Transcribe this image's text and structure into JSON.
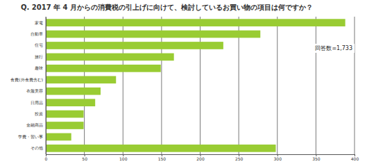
{
  "chart_data": {
    "type": "bar",
    "orientation": "horizontal",
    "title": "Q. 2017 年 4 月からの消費税の引上げに向けて、検討しているお買い物の項目は何ですか？",
    "annotation": "回答数=1,733",
    "categories": [
      "家電",
      "自動車",
      "住宅",
      "旅行",
      "趣味",
      "食費(外食費含む)",
      "衣服美容",
      "日用品",
      "投資",
      "金融商品",
      "学費・習い事",
      "その他"
    ],
    "values": [
      388,
      278,
      230,
      166,
      149,
      91,
      71,
      64,
      49,
      49,
      33,
      298
    ],
    "color": "#99cc33",
    "xlim": [
      0,
      400
    ],
    "xticks": [
      0,
      50,
      100,
      150,
      200,
      250,
      300,
      350,
      400
    ],
    "grid": true
  }
}
